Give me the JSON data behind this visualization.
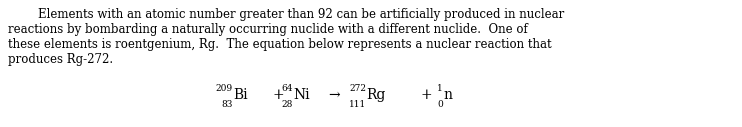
{
  "background_color": "#ffffff",
  "text_color": "#000000",
  "lines": [
    "        Elements with an atomic number greater than 92 can be artificially produced in nuclear",
    "reactions by bombarding a naturally occurring nuclide with a different nuclide.  One of",
    "these elements is roentgenium, Rg.  The equation below represents a nuclear reaction that",
    "produces Rg-272."
  ],
  "equation": {
    "bi_mass": "209",
    "bi_atomic": "83",
    "bi_symbol": "Bi",
    "ni_mass": "64",
    "ni_atomic": "28",
    "ni_symbol": "Ni",
    "rg_mass": "272",
    "rg_atomic": "111",
    "rg_symbol": "Rg",
    "n_mass": "1",
    "n_atomic": "0",
    "n_symbol": "n"
  },
  "font_size_text": 8.5,
  "font_size_eq": 10.0,
  "font_size_script": 6.5,
  "fig_width": 7.42,
  "fig_height": 1.27,
  "dpi": 100
}
